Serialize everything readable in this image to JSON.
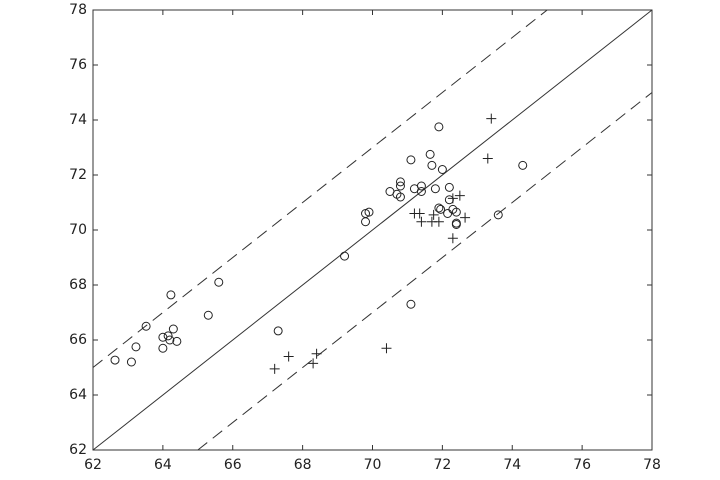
{
  "chart_data": {
    "type": "scatter",
    "xlim": [
      62,
      78
    ],
    "ylim": [
      62,
      78
    ],
    "xticks": [
      62,
      64,
      66,
      68,
      70,
      72,
      74,
      76,
      78
    ],
    "yticks": [
      62,
      64,
      66,
      68,
      70,
      72,
      74,
      76,
      78
    ],
    "series": [
      {
        "marker": "circle",
        "color": "#222222",
        "x": [
          62.63,
          63.1,
          63.23,
          63.52,
          64.23,
          64.0,
          64.0,
          64.15,
          64.3,
          64.2,
          64.4,
          65.3,
          65.6,
          67.3,
          69.2,
          69.8,
          69.8,
          69.9,
          70.5,
          70.7,
          70.8,
          70.8,
          70.8,
          71.1,
          71.2,
          71.4,
          71.4,
          71.65,
          71.7,
          71.8,
          71.9,
          72.0,
          71.9,
          71.95,
          72.2,
          72.2,
          72.15,
          72.3,
          72.4,
          72.4,
          72.4,
          74.3,
          73.6,
          71.1
        ],
        "values": [
          65.27,
          65.2,
          65.75,
          66.5,
          67.64,
          65.7,
          66.1,
          66.15,
          66.4,
          66.0,
          65.95,
          66.9,
          68.1,
          66.33,
          69.05,
          70.3,
          70.6,
          70.65,
          71.4,
          71.3,
          71.75,
          71.6,
          71.2,
          72.55,
          71.5,
          71.6,
          71.4,
          72.75,
          72.35,
          71.5,
          73.75,
          72.2,
          70.8,
          70.75,
          71.55,
          71.1,
          70.6,
          70.75,
          70.65,
          70.25,
          70.2,
          72.35,
          70.55,
          67.3
        ]
      },
      {
        "marker": "plus",
        "color": "#222222",
        "x": [
          67.2,
          67.6,
          68.3,
          68.4,
          70.4,
          71.2,
          71.35,
          71.4,
          71.7,
          71.75,
          71.9,
          72.3,
          72.3,
          72.5,
          72.65,
          73.3,
          73.4
        ],
        "values": [
          64.95,
          65.4,
          65.15,
          65.5,
          65.7,
          70.6,
          70.6,
          70.3,
          70.3,
          70.55,
          70.3,
          69.7,
          71.15,
          71.25,
          70.45,
          72.6,
          74.05
        ]
      }
    ],
    "lines": [
      {
        "style": "solid",
        "x": [
          62,
          78
        ],
        "values": [
          62,
          78
        ]
      },
      {
        "style": "dashed",
        "x": [
          62,
          75
        ],
        "values": [
          65,
          78
        ]
      },
      {
        "style": "dashed",
        "x": [
          65,
          78
        ],
        "values": [
          62,
          75
        ]
      }
    ]
  }
}
